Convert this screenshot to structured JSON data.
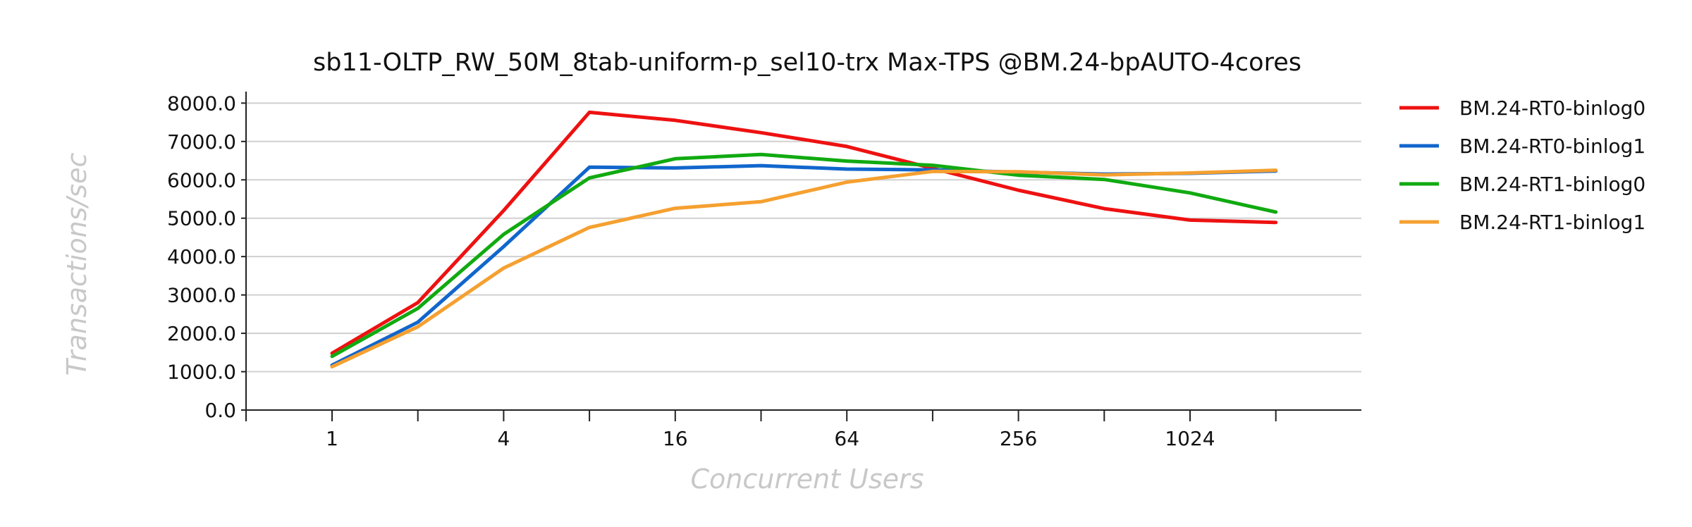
{
  "chart_data": {
    "type": "line",
    "title": "sb11-OLTP_RW_50M_8tab-uniform-p_sel10-trx Max-TPS @BM.24-bpAUTO-4cores",
    "xlabel": "Concurrent Users",
    "ylabel": "Transactions/sec",
    "x": [
      1,
      2,
      4,
      8,
      16,
      32,
      64,
      128,
      256,
      512,
      1024,
      2048
    ],
    "x_scale": "log2",
    "x_tick_labels": [
      "1",
      "4",
      "16",
      "64",
      "256",
      "1024"
    ],
    "x_tick_values": [
      1,
      4,
      16,
      64,
      256,
      1024
    ],
    "ylim": [
      0,
      8300
    ],
    "y_ticks": [
      0,
      1000,
      2000,
      3000,
      4000,
      5000,
      6000,
      7000,
      8000
    ],
    "y_tick_labels": [
      "0.0",
      "1000.0",
      "2000.0",
      "3000.0",
      "4000.0",
      "5000.0",
      "6000.0",
      "7000.0",
      "8000.0"
    ],
    "grid": "horizontal",
    "legend_position": "right",
    "series": [
      {
        "name": "BM.24-RT0-binlog0",
        "color": "#ee1111",
        "values": [
          1480,
          2800,
          5200,
          7760,
          7550,
          7230,
          6870,
          6300,
          5730,
          5250,
          4950,
          4890
        ]
      },
      {
        "name": "BM.24-RT0-binlog1",
        "color": "#1166cc",
        "values": [
          1170,
          2290,
          4260,
          6330,
          6310,
          6370,
          6280,
          6260,
          6200,
          6150,
          6170,
          6230
        ]
      },
      {
        "name": "BM.24-RT1-binlog0",
        "color": "#11aa11",
        "values": [
          1400,
          2650,
          4580,
          6050,
          6550,
          6660,
          6490,
          6380,
          6120,
          6010,
          5660,
          5160
        ]
      },
      {
        "name": "BM.24-RT1-binlog1",
        "color": "#f5a030",
        "values": [
          1130,
          2170,
          3700,
          4760,
          5260,
          5430,
          5940,
          6220,
          6210,
          6130,
          6180,
          6250
        ]
      }
    ]
  }
}
